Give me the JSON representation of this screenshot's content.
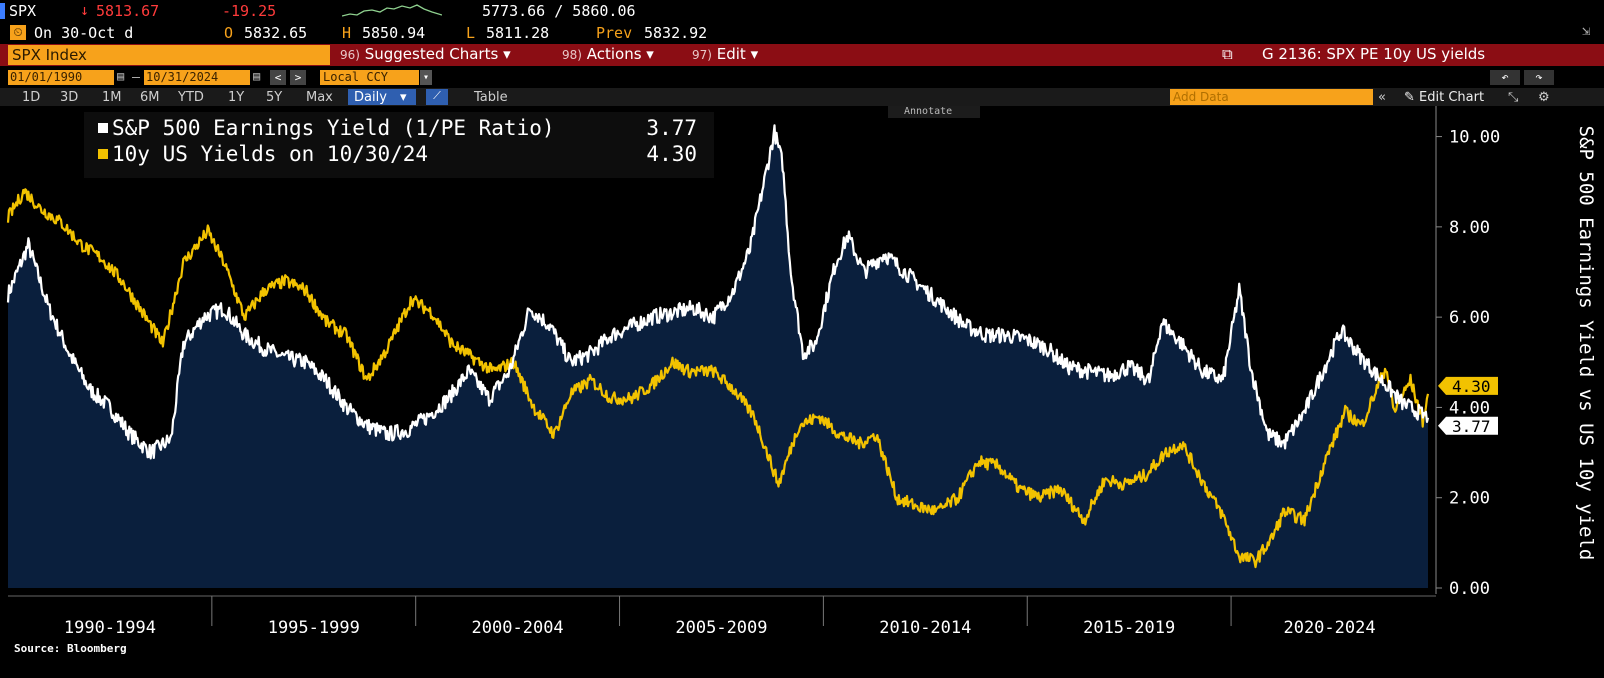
{
  "quote": {
    "ticker": "SPX",
    "arrow": "↓",
    "price": "5813.67",
    "change": "-19.25",
    "range": "5773.66 / 5860.06",
    "date_line": "On 30-Oct d",
    "open_label": "O",
    "open": "5832.65",
    "high_label": "H",
    "high": "5850.94",
    "low_label": "L",
    "low": "5811.28",
    "prev_label": "Prev",
    "prev": "5832.92"
  },
  "toolbar": {
    "security": "SPX Index",
    "suggested_num": "96)",
    "suggested": "Suggested Charts",
    "actions_num": "98)",
    "actions": "Actions",
    "edit_num": "97)",
    "edit": "Edit",
    "chart_title": "G 2136: SPX PE 10y US yields",
    "start_date": "01/01/1990",
    "end_date": "10/31/2024",
    "currency": "Local CCY",
    "periods": [
      "1D",
      "3D",
      "1M",
      "6M",
      "YTD",
      "1Y",
      "5Y",
      "Max"
    ],
    "frequency": "Daily",
    "table": "Table",
    "add_data": "Add Data",
    "edit_chart": "Edit Chart",
    "annotate": "Annotate"
  },
  "colors": {
    "earnings_yield": "#ffffff",
    "us10y": "#f2c200",
    "area_fill": "#0a1f3d",
    "title_bar": "#8b0d14",
    "accent": "#f7a21b"
  },
  "chart_data": {
    "type": "line",
    "y_axis_label": "S&P 500 Earnings Yield vs US 10y yield",
    "ylim": [
      0,
      10.5
    ],
    "yticks": [
      "0.00",
      "2.00",
      "4.00",
      "6.00",
      "8.00",
      "10.00"
    ],
    "x_periods": [
      "1990-1994",
      "1995-1999",
      "2000-2004",
      "2005-2009",
      "2010-2014",
      "2015-2019",
      "2020-2024"
    ],
    "x_range": [
      1990,
      2024.83
    ],
    "grid": false,
    "legend_placement": "top-left",
    "source": "Source: Bloomberg",
    "series": [
      {
        "name": "S&P 500 Earnings Yield (1/PE Ratio)",
        "last": "3.77",
        "points": [
          [
            1990.0,
            6.5
          ],
          [
            1990.5,
            7.6
          ],
          [
            1991.0,
            6.2
          ],
          [
            1991.5,
            5.2
          ],
          [
            1992.0,
            4.4
          ],
          [
            1992.5,
            4.0
          ],
          [
            1993.0,
            3.4
          ],
          [
            1993.5,
            3.0
          ],
          [
            1994.0,
            3.3
          ],
          [
            1994.3,
            5.4
          ],
          [
            1994.8,
            6.0
          ],
          [
            1995.3,
            6.2
          ],
          [
            1995.8,
            5.6
          ],
          [
            1996.3,
            5.3
          ],
          [
            1996.8,
            5.1
          ],
          [
            1997.3,
            5.0
          ],
          [
            1997.8,
            4.6
          ],
          [
            1998.3,
            4.0
          ],
          [
            1998.8,
            3.6
          ],
          [
            1999.3,
            3.4
          ],
          [
            1999.8,
            3.5
          ],
          [
            2000.3,
            3.8
          ],
          [
            2000.8,
            4.2
          ],
          [
            2001.3,
            4.8
          ],
          [
            2001.8,
            4.2
          ],
          [
            2002.3,
            4.8
          ],
          [
            2002.8,
            6.2
          ],
          [
            2003.3,
            5.8
          ],
          [
            2003.8,
            5.0
          ],
          [
            2004.3,
            5.2
          ],
          [
            2004.8,
            5.6
          ],
          [
            2005.3,
            5.8
          ],
          [
            2005.8,
            6.0
          ],
          [
            2006.3,
            6.1
          ],
          [
            2006.8,
            6.2
          ],
          [
            2007.3,
            6.0
          ],
          [
            2007.8,
            6.6
          ],
          [
            2008.2,
            7.5
          ],
          [
            2008.5,
            8.8
          ],
          [
            2008.8,
            10.1
          ],
          [
            2009.0,
            9.4
          ],
          [
            2009.2,
            7.0
          ],
          [
            2009.5,
            5.2
          ],
          [
            2009.8,
            5.4
          ],
          [
            2010.3,
            7.2
          ],
          [
            2010.6,
            7.8
          ],
          [
            2011.0,
            7.0
          ],
          [
            2011.5,
            7.4
          ],
          [
            2012.0,
            7.0
          ],
          [
            2012.5,
            6.6
          ],
          [
            2013.0,
            6.2
          ],
          [
            2013.5,
            5.8
          ],
          [
            2014.0,
            5.6
          ],
          [
            2014.5,
            5.6
          ],
          [
            2015.0,
            5.5
          ],
          [
            2015.5,
            5.3
          ],
          [
            2016.0,
            4.9
          ],
          [
            2016.5,
            4.8
          ],
          [
            2017.0,
            4.7
          ],
          [
            2017.5,
            4.9
          ],
          [
            2018.0,
            4.6
          ],
          [
            2018.3,
            5.9
          ],
          [
            2018.8,
            5.4
          ],
          [
            2019.3,
            4.8
          ],
          [
            2019.8,
            4.6
          ],
          [
            2020.2,
            6.6
          ],
          [
            2020.5,
            4.8
          ],
          [
            2020.9,
            3.4
          ],
          [
            2021.3,
            3.2
          ],
          [
            2021.8,
            3.9
          ],
          [
            2022.3,
            4.9
          ],
          [
            2022.7,
            5.7
          ],
          [
            2023.2,
            5.1
          ],
          [
            2023.7,
            4.6
          ],
          [
            2024.2,
            4.1
          ],
          [
            2024.83,
            3.77
          ]
        ]
      },
      {
        "name": "10y US Yields on 10/30/24",
        "last": "4.30",
        "points": [
          [
            1990.0,
            8.2
          ],
          [
            1990.4,
            8.8
          ],
          [
            1990.8,
            8.4
          ],
          [
            1991.3,
            8.1
          ],
          [
            1991.8,
            7.6
          ],
          [
            1992.3,
            7.3
          ],
          [
            1992.8,
            6.8
          ],
          [
            1993.3,
            6.1
          ],
          [
            1993.8,
            5.4
          ],
          [
            1994.3,
            7.2
          ],
          [
            1994.9,
            7.9
          ],
          [
            1995.3,
            7.2
          ],
          [
            1995.8,
            6.0
          ],
          [
            1996.3,
            6.6
          ],
          [
            1996.8,
            6.8
          ],
          [
            1997.3,
            6.6
          ],
          [
            1997.8,
            5.9
          ],
          [
            1998.3,
            5.6
          ],
          [
            1998.8,
            4.6
          ],
          [
            1999.3,
            5.3
          ],
          [
            1999.9,
            6.4
          ],
          [
            2000.4,
            6.1
          ],
          [
            2000.9,
            5.4
          ],
          [
            2001.4,
            5.1
          ],
          [
            2001.9,
            4.8
          ],
          [
            2002.4,
            5.0
          ],
          [
            2002.9,
            4.0
          ],
          [
            2003.4,
            3.4
          ],
          [
            2003.8,
            4.3
          ],
          [
            2004.3,
            4.6
          ],
          [
            2004.8,
            4.2
          ],
          [
            2005.3,
            4.2
          ],
          [
            2005.8,
            4.5
          ],
          [
            2006.3,
            5.0
          ],
          [
            2006.7,
            4.8
          ],
          [
            2007.3,
            4.8
          ],
          [
            2007.8,
            4.4
          ],
          [
            2008.3,
            3.8
          ],
          [
            2008.9,
            2.3
          ],
          [
            2009.4,
            3.6
          ],
          [
            2009.9,
            3.8
          ],
          [
            2010.4,
            3.4
          ],
          [
            2010.9,
            3.2
          ],
          [
            2011.3,
            3.4
          ],
          [
            2011.8,
            2.0
          ],
          [
            2012.3,
            1.8
          ],
          [
            2012.8,
            1.7
          ],
          [
            2013.3,
            2.0
          ],
          [
            2013.8,
            2.8
          ],
          [
            2014.3,
            2.7
          ],
          [
            2014.8,
            2.2
          ],
          [
            2015.3,
            2.0
          ],
          [
            2015.8,
            2.2
          ],
          [
            2016.4,
            1.5
          ],
          [
            2016.9,
            2.4
          ],
          [
            2017.4,
            2.3
          ],
          [
            2017.9,
            2.5
          ],
          [
            2018.4,
            3.0
          ],
          [
            2018.8,
            3.2
          ],
          [
            2019.4,
            2.2
          ],
          [
            2019.8,
            1.6
          ],
          [
            2020.2,
            0.7
          ],
          [
            2020.6,
            0.6
          ],
          [
            2021.0,
            1.1
          ],
          [
            2021.3,
            1.7
          ],
          [
            2021.8,
            1.5
          ],
          [
            2022.3,
            2.8
          ],
          [
            2022.8,
            3.9
          ],
          [
            2023.2,
            3.6
          ],
          [
            2023.8,
            4.9
          ],
          [
            2024.0,
            3.9
          ],
          [
            2024.4,
            4.6
          ],
          [
            2024.7,
            3.7
          ],
          [
            2024.83,
            4.3
          ]
        ]
      }
    ]
  }
}
